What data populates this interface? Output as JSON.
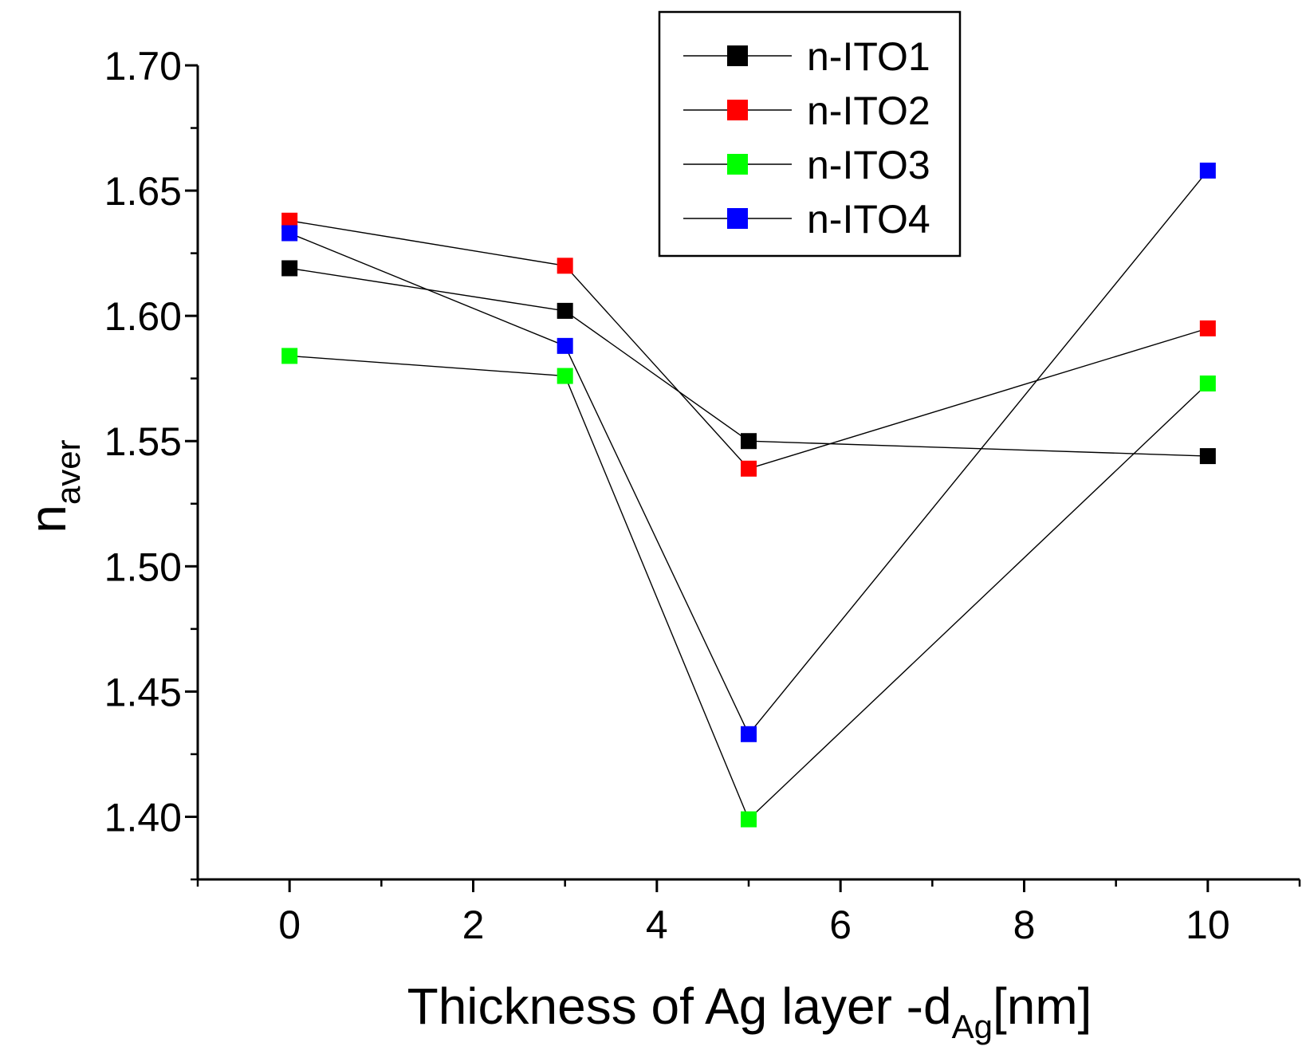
{
  "chart_data": {
    "type": "line",
    "x": [
      0,
      3,
      5,
      10
    ],
    "series": [
      {
        "name": "n-ITO1",
        "color": "#000000",
        "values": [
          1.619,
          1.602,
          1.55,
          1.544
        ]
      },
      {
        "name": "n-ITO2",
        "color": "#ff0000",
        "values": [
          1.638,
          1.62,
          1.539,
          1.595
        ]
      },
      {
        "name": "n-ITO3",
        "color": "#00ff00",
        "values": [
          1.584,
          1.576,
          1.399,
          1.573
        ]
      },
      {
        "name": "n-ITO4",
        "color": "#0000ff",
        "values": [
          1.633,
          1.588,
          1.433,
          1.658
        ]
      }
    ],
    "xlabel": {
      "main": "Thickness of Ag layer -d",
      "sub": "Ag",
      "tail": "[nm]"
    },
    "ylabel": {
      "main": "n",
      "sub": "aver"
    },
    "xlim": [
      -1,
      11
    ],
    "ylim": [
      1.375,
      1.7
    ],
    "xticks": [
      "0",
      "2",
      "4",
      "6",
      "8",
      "10"
    ],
    "yticks": [
      "1.40",
      "1.45",
      "1.50",
      "1.55",
      "1.60",
      "1.65",
      "1.70"
    ],
    "grid": false,
    "legend_position": "top-right",
    "marker": "square"
  }
}
